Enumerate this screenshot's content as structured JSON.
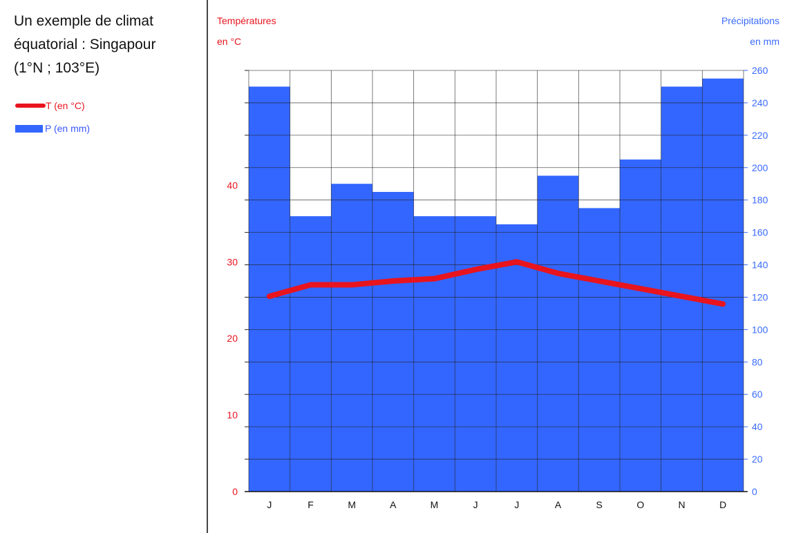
{
  "title_lines": [
    "Un exemple de climat",
    "équatorial : Singapour",
    "(1°N ; 103°E)"
  ],
  "legend": {
    "temperature": "T (en °C)",
    "precipitation": "P (en mm)"
  },
  "axes": {
    "temp_label_1": "Températures",
    "temp_label_2": "en °C",
    "precip_label_1": "Précipitations",
    "precip_label_2": "en mm"
  },
  "colors": {
    "temperature": "#e8141e",
    "precipitation": "#3366ff",
    "grid": "#222222"
  },
  "chart_data": {
    "type": "bar",
    "categories": [
      "J",
      "F",
      "M",
      "A",
      "M",
      "J",
      "J",
      "A",
      "S",
      "O",
      "N",
      "D"
    ],
    "series": [
      {
        "name": "P (en mm)",
        "type": "bar",
        "axis": "right",
        "values": [
          250,
          170,
          190,
          185,
          170,
          170,
          165,
          195,
          175,
          205,
          250,
          255
        ]
      },
      {
        "name": "T (en °C)",
        "type": "line",
        "axis": "left",
        "values": [
          25.5,
          27,
          27,
          27.5,
          27.8,
          29,
          30,
          28.5,
          27.5,
          26.5,
          25.5,
          24.5
        ]
      }
    ],
    "y_left": {
      "ticks": [
        0,
        10,
        20,
        30,
        40
      ],
      "range": [
        0,
        55
      ]
    },
    "y_right": {
      "ticks": [
        0,
        20,
        40,
        60,
        80,
        100,
        120,
        140,
        160,
        180,
        200,
        220,
        240,
        260
      ],
      "range": [
        0,
        260
      ]
    },
    "grid": true
  }
}
